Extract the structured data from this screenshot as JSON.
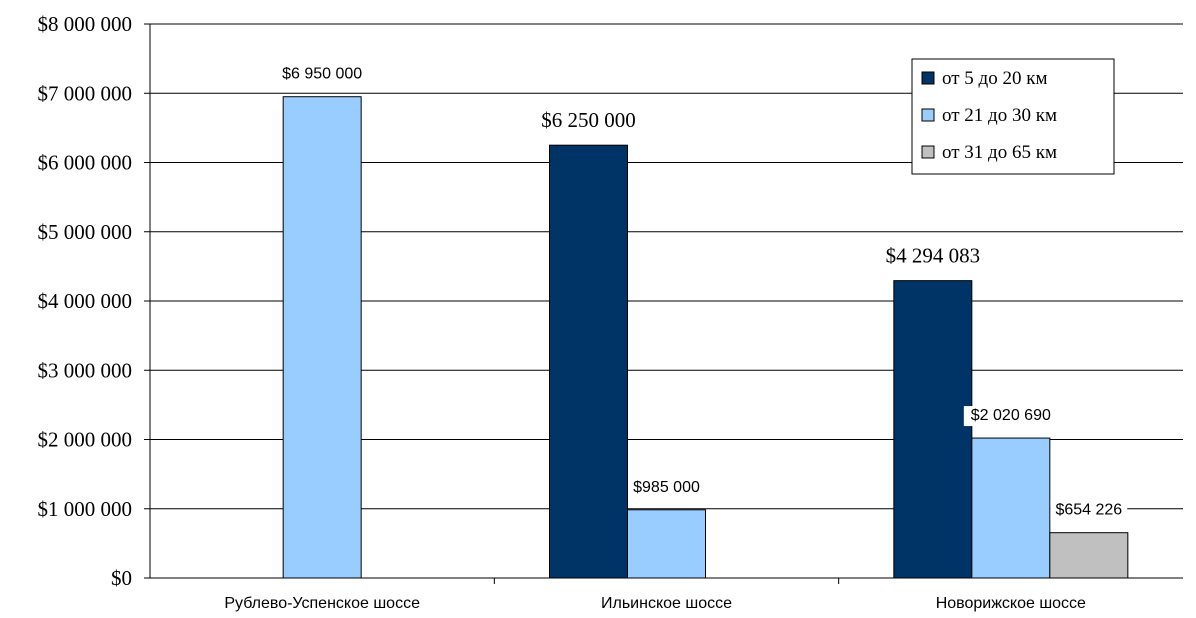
{
  "chart_data": {
    "type": "bar",
    "categories": [
      "Рублево-Успенское шоссе",
      "Ильинское шоссе",
      "Новорижское шоссе"
    ],
    "series": [
      {
        "name": "от 5 до 20 км",
        "color": "#003366",
        "values": [
          null,
          6250000,
          4294083
        ]
      },
      {
        "name": "от 21 до 30 км",
        "color": "#99CCFF",
        "values": [
          6950000,
          985000,
          2020690
        ]
      },
      {
        "name": "от 31 до 65 км",
        "color": "#C0C0C0",
        "values": [
          null,
          null,
          654226
        ]
      }
    ],
    "data_labels": [
      [
        null,
        "$6 250 000",
        "$4 294 083"
      ],
      [
        "$6 950 000",
        "$985 000",
        "$2 020 690"
      ],
      [
        null,
        null,
        "$654 226"
      ]
    ],
    "y_ticks": [
      "$0",
      "$1 000 000",
      "$2 000 000",
      "$3 000 000",
      "$4 000 000",
      "$5 000 000",
      "$6 000 000",
      "$7 000 000",
      "$8 000 000"
    ],
    "ylim": [
      0,
      8000000
    ],
    "title": "",
    "xlabel": "",
    "ylabel": "",
    "grid": true,
    "legend_position": "top-right"
  }
}
